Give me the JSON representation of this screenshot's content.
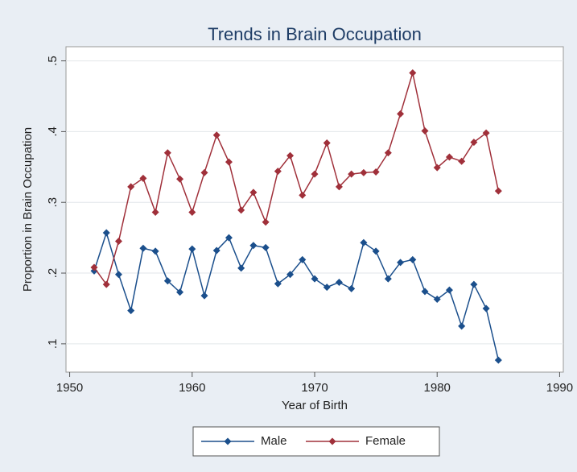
{
  "chart_data": {
    "type": "line",
    "title": "Trends in Brain Occupation",
    "x_label": "Year of Birth",
    "y_label": "Proportion in Brain Occupation",
    "x": [
      1952,
      1953,
      1954,
      1955,
      1956,
      1957,
      1958,
      1959,
      1960,
      1961,
      1962,
      1963,
      1964,
      1965,
      1966,
      1967,
      1968,
      1969,
      1970,
      1971,
      1972,
      1973,
      1974,
      1975,
      1976,
      1977,
      1978,
      1979,
      1980,
      1981,
      1982,
      1983,
      1984,
      1985
    ],
    "series": [
      {
        "name": "Male",
        "color": "#1b4f8c",
        "values": [
          0.203,
          0.257,
          0.198,
          0.147,
          0.235,
          0.231,
          0.189,
          0.173,
          0.234,
          0.168,
          0.232,
          0.25,
          0.207,
          0.239,
          0.236,
          0.185,
          0.198,
          0.219,
          0.192,
          0.18,
          0.187,
          0.178,
          0.243,
          0.231,
          0.192,
          0.215,
          0.219,
          0.174,
          0.163,
          0.176,
          0.125,
          0.184,
          0.15,
          0.077
        ]
      },
      {
        "name": "Female",
        "color": "#a0303a",
        "values": [
          0.208,
          0.184,
          0.245,
          0.322,
          0.334,
          0.286,
          0.37,
          0.333,
          0.286,
          0.342,
          0.395,
          0.357,
          0.289,
          0.314,
          0.272,
          0.344,
          0.366,
          0.31,
          0.34,
          0.384,
          0.322,
          0.34,
          0.342,
          0.343,
          0.37,
          0.425,
          0.483,
          0.401,
          0.349,
          0.364,
          0.358,
          0.385,
          0.398,
          0.316
        ]
      }
    ],
    "xlim": [
      1949.7,
      1990.3
    ],
    "xticks": [
      1950,
      1960,
      1970,
      1980,
      1990
    ],
    "ylim": [
      0.06,
      0.52
    ],
    "yticks": [
      {
        "value": 0.1,
        "label": ".1"
      },
      {
        "value": 0.2,
        "label": ".2"
      },
      {
        "value": 0.3,
        "label": ".3"
      },
      {
        "value": 0.4,
        "label": ".4"
      },
      {
        "value": 0.5,
        "label": ".5"
      }
    ],
    "grid": true,
    "legend": "bottom"
  }
}
